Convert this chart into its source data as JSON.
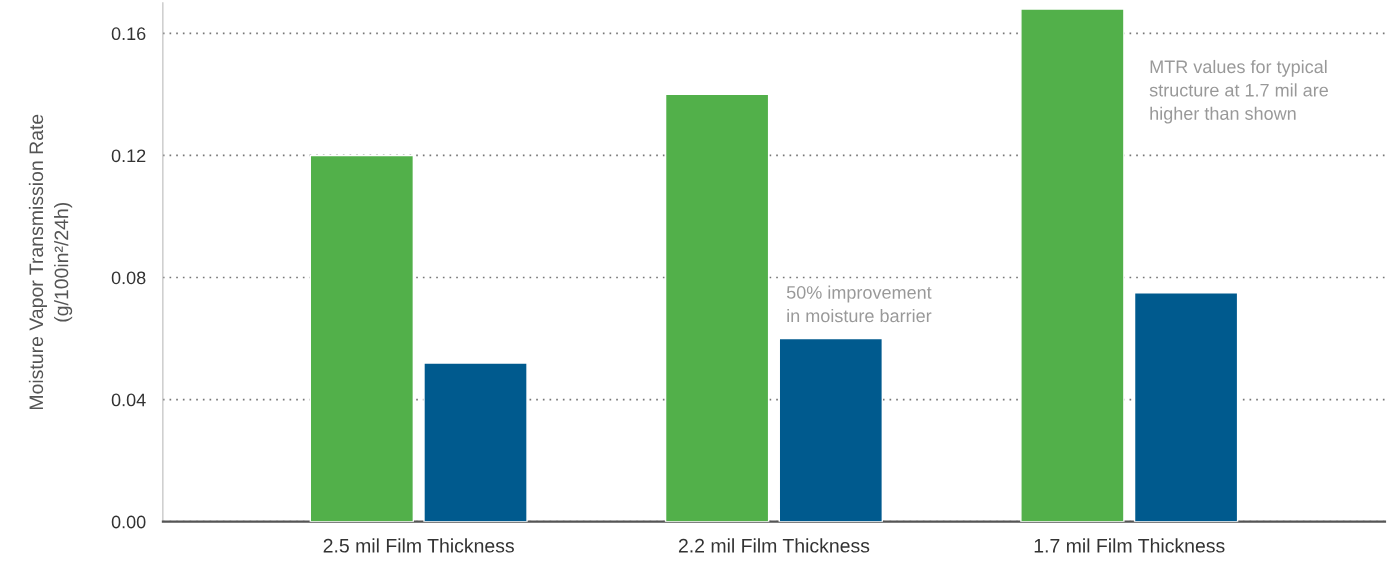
{
  "chart_data": {
    "type": "bar",
    "ylabel": "Moisture Vapor Transmission Rate\n(g/100in²/24h)",
    "categories": [
      "2.5 mil Film Thickness",
      "2.2 mil Film Thickness",
      "1.7 mil Film Thickness"
    ],
    "series": [
      {
        "color": "#52b04a",
        "values": [
          0.12,
          0.14,
          0.168
        ]
      },
      {
        "color": "#005a8e",
        "values": [
          0.052,
          0.06,
          0.075
        ]
      }
    ],
    "ylim": [
      0,
      0.17
    ],
    "yticks": [
      {
        "value": 0,
        "label": "0.00"
      },
      {
        "value": 0.04,
        "label": "0.04"
      },
      {
        "value": 0.08,
        "label": "0.08"
      },
      {
        "value": 0.12,
        "label": "0.12"
      },
      {
        "value": 0.16,
        "label": "0.16"
      }
    ],
    "grid": "y",
    "legend": false,
    "annotations": [
      "50% improvement\nin moisture barrier",
      "MTR values for typical\nstructure at 1.7 mil are\nhigher than shown"
    ]
  }
}
